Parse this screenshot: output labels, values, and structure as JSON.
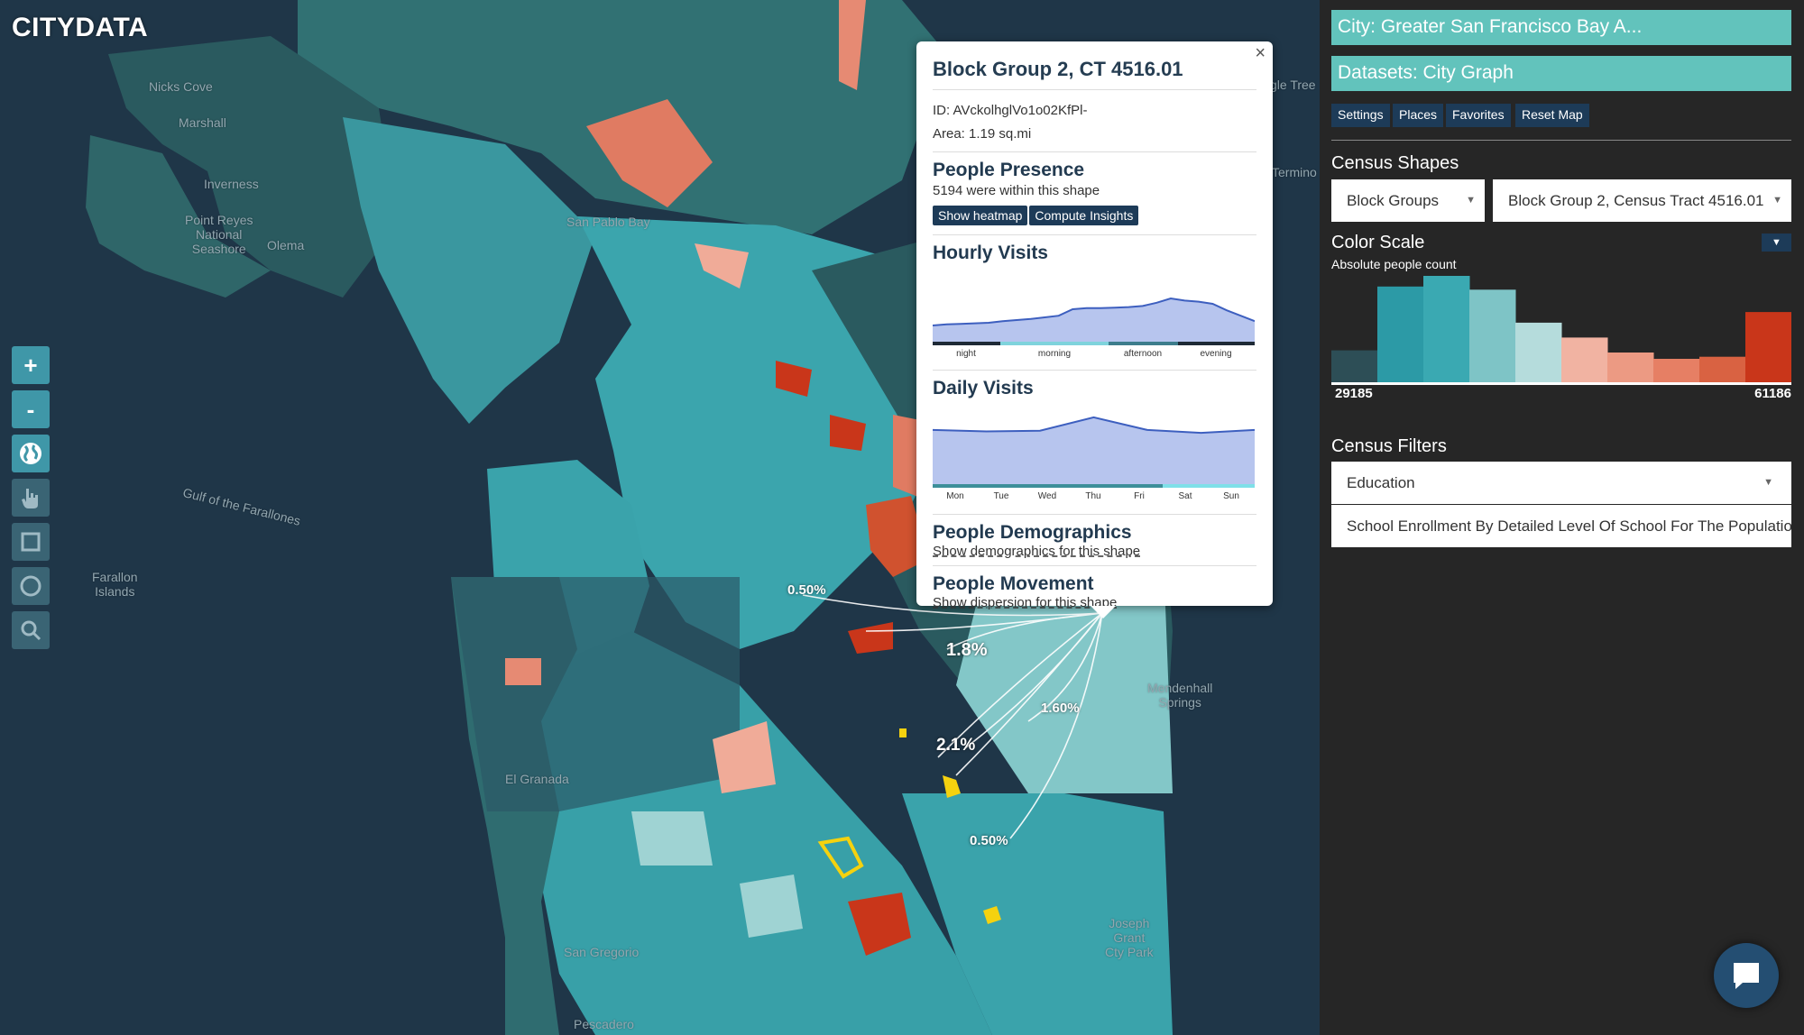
{
  "app": {
    "logo": "CITYDATA"
  },
  "map_labels": [
    {
      "id": "nicks-cove",
      "text": "Nicks Cove"
    },
    {
      "id": "marshall",
      "text": "Marshall"
    },
    {
      "id": "inverness",
      "text": "Inverness"
    },
    {
      "id": "point-reyes",
      "text": "Point Reyes\nNational\nSeashore"
    },
    {
      "id": "olema",
      "text": "Olema"
    },
    {
      "id": "farallones-gulf",
      "text": "Gulf of the Farallones"
    },
    {
      "id": "farallon",
      "text": "Farallon\nIslands"
    },
    {
      "id": "san-pablo-bay",
      "text": "San Pablo Bay"
    },
    {
      "id": "mendenhall",
      "text": "Mendenhall\nSprings"
    },
    {
      "id": "el-granada",
      "text": "El Granada"
    },
    {
      "id": "san-gregorio",
      "text": "San Gregorio"
    },
    {
      "id": "pescadero",
      "text": "Pescadero"
    },
    {
      "id": "joseph-grant",
      "text": "Joseph\nGrant\nCty Park"
    },
    {
      "id": "termino",
      "text": "Termino"
    },
    {
      "id": "glenn-tree",
      "text": "gle Tree"
    }
  ],
  "map_tools": [
    {
      "id": "zoom-in",
      "label": "+",
      "icon": "plus-icon"
    },
    {
      "id": "zoom-out",
      "label": "-",
      "icon": "minus-icon"
    },
    {
      "id": "globe",
      "label": "",
      "icon": "globe-icon"
    },
    {
      "id": "hand",
      "label": "",
      "icon": "hand-icon"
    },
    {
      "id": "rect",
      "label": "",
      "icon": "square-select-icon"
    },
    {
      "id": "circle",
      "label": "",
      "icon": "circle-select-icon"
    },
    {
      "id": "search",
      "label": "",
      "icon": "search-icon"
    }
  ],
  "flow_labels": [
    {
      "id": "flow-050-top",
      "text": "0.50%"
    },
    {
      "id": "flow-18",
      "text": "1.8%"
    },
    {
      "id": "flow-160",
      "text": "1.60%"
    },
    {
      "id": "flow-21",
      "text": "2.1%"
    },
    {
      "id": "flow-050-bottom",
      "text": "0.50%"
    }
  ],
  "popup": {
    "title": "Block Group 2, CT 4516.01",
    "id_line": "ID: AVckolhglVo1o02KfPl-",
    "area_line": "Area: 1.19 sq.mi",
    "presence": {
      "heading": "People Presence",
      "text": "5194 were within this shape",
      "heatmap_btn": "Show heatmap",
      "insights_btn": "Compute Insights"
    },
    "hourly": {
      "heading": "Hourly Visits",
      "periods": [
        "night",
        "morning",
        "afternoon",
        "evening"
      ]
    },
    "daily": {
      "heading": "Daily Visits",
      "days": [
        "Mon",
        "Tue",
        "Wed",
        "Thu",
        "Fri",
        "Sat",
        "Sun"
      ]
    },
    "demographics": {
      "heading": "People Demographics",
      "link": "Show demographics for this shape"
    },
    "movement": {
      "heading": "People Movement",
      "link": "Show dispersion for this shape"
    }
  },
  "chart_data": [
    {
      "type": "area",
      "title": "Hourly Visits",
      "x": [
        0,
        1,
        2,
        3,
        4,
        5,
        6,
        7,
        8,
        9,
        10,
        11,
        12,
        13,
        14,
        15,
        16,
        17,
        18,
        19,
        20,
        21,
        22,
        23
      ],
      "categories": [
        "night",
        "morning",
        "afternoon",
        "evening"
      ],
      "values": [
        0.3,
        0.32,
        0.33,
        0.34,
        0.35,
        0.38,
        0.4,
        0.42,
        0.45,
        0.48,
        0.6,
        0.62,
        0.62,
        0.63,
        0.64,
        0.66,
        0.72,
        0.8,
        0.76,
        0.74,
        0.7,
        0.58,
        0.48,
        0.38
      ],
      "ylim": [
        0,
        1
      ],
      "color": "#3d5fbf",
      "fill": "#b7c5ee"
    },
    {
      "type": "area",
      "title": "Daily Visits",
      "categories": [
        "Mon",
        "Tue",
        "Wed",
        "Thu",
        "Fri",
        "Sat",
        "Sun"
      ],
      "values": [
        0.77,
        0.75,
        0.76,
        0.95,
        0.77,
        0.73,
        0.77
      ],
      "ylim": [
        0,
        1
      ],
      "color": "#3d5fbf",
      "fill": "#b7c5ee"
    }
  ],
  "panel": {
    "city": "City: Greater San Francisco Bay A...",
    "datasets": "Datasets: City Graph",
    "nav": [
      "Settings",
      "Places",
      "Favorites",
      "Reset Map"
    ],
    "census_shapes": "Census Shapes",
    "shape_type": "Block Groups",
    "shape_selected": "Block Group 2, Census Tract 4516.01",
    "color_scale": "Color Scale",
    "color_scale_sub": "Absolute people count",
    "scale_min": "29185",
    "scale_max": "61186",
    "census_filters": "Census Filters",
    "filter_category": "Education",
    "filter_item": "School Enrollment By Detailed Level Of School For The Populatio"
  },
  "histogram": {
    "values": [
      0.3,
      0.9,
      1.0,
      0.87,
      0.56,
      0.42,
      0.28,
      0.22,
      0.24,
      0.66
    ],
    "colors": [
      "#2d4e56",
      "#2c9aa6",
      "#3aa9b2",
      "#7ec4c6",
      "#b5dcdc",
      "#f1b3a2",
      "#ec9a83",
      "#e67f64",
      "#d96242",
      "#c9361a"
    ]
  },
  "palette": {
    "teal_dark": "#2a5a5f",
    "teal": "#3aa3ab",
    "teal_light": "#8dcccc",
    "salmon": "#e68a73",
    "red": "#c9361a",
    "yellow": "#f5d20f",
    "panel_pill": "#62c3bc",
    "button_navy": "#1d3b58"
  }
}
